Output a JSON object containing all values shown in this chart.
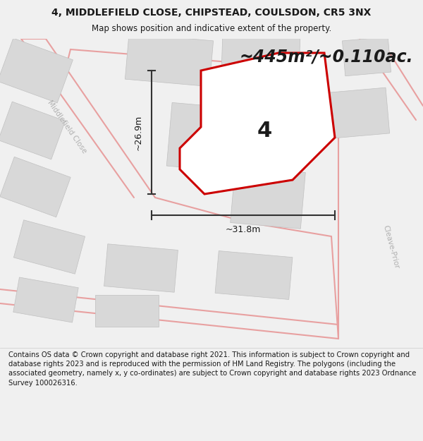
{
  "title_line1": "4, MIDDLEFIELD CLOSE, CHIPSTEAD, COULSDON, CR5 3NX",
  "title_line2": "Map shows position and indicative extent of the property.",
  "area_text": "~445m²/~0.110ac.",
  "label_number": "4",
  "dim_width": "~31.8m",
  "dim_height": "~26.9m",
  "road_label1": "Middlefield Close",
  "road_label2": "Cleave-Prior",
  "footer_text": "Contains OS data © Crown copyright and database right 2021. This information is subject to Crown copyright and database rights 2023 and is reproduced with the permission of HM Land Registry. The polygons (including the associated geometry, namely x, y co-ordinates) are subject to Crown copyright and database rights 2023 Ordnance Survey 100026316.",
  "bg_color": "#f0f0f0",
  "map_bg": "#ffffff",
  "road_color": "#e8a0a0",
  "building_color": "#d8d8d8",
  "building_edge": "#c0c0c0",
  "property_fill": "#ffffff",
  "property_outline": "#cc0000",
  "dim_line_color": "#333333",
  "text_color": "#1a1a1a",
  "road_text_color": "#b0b0b0",
  "footer_bg": "#ffffff",
  "title_fontsize": 10,
  "subtitle_fontsize": 8.5,
  "area_fontsize": 17,
  "number_fontsize": 22,
  "dim_fontsize": 9,
  "road_fontsize": 7.5,
  "footer_fontsize": 7.2
}
